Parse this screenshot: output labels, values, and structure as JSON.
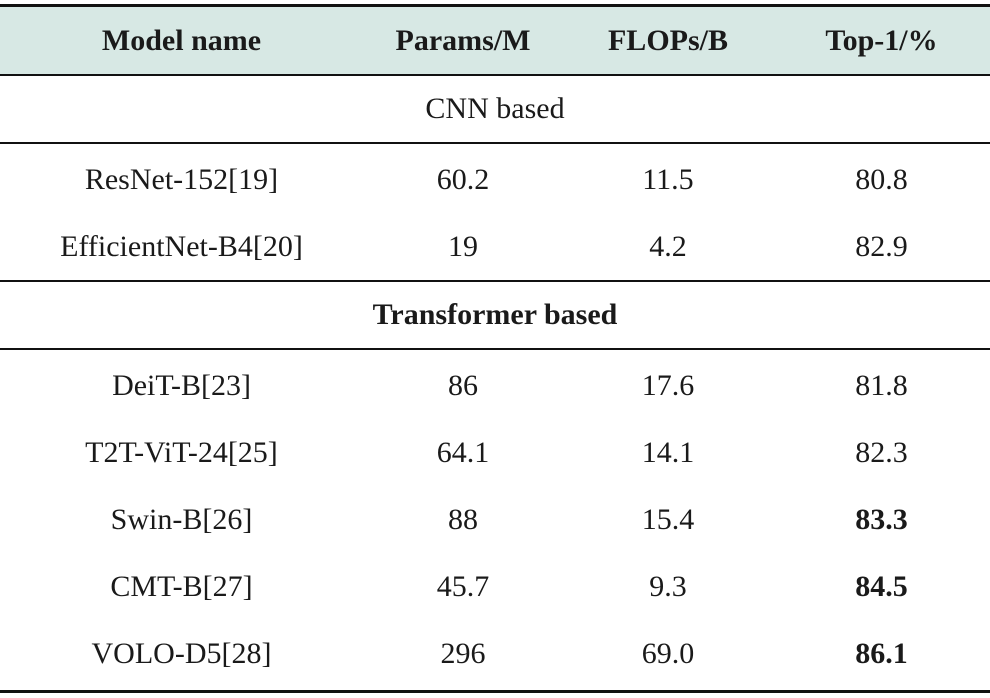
{
  "table": {
    "headers": [
      "Model name",
      "Params/M",
      "FLOPs/B",
      "Top-1/%"
    ],
    "sections": [
      {
        "title": "CNN based",
        "rows": [
          {
            "cells": [
              "ResNet-152[19]",
              "60.2",
              "11.5",
              "80.8"
            ]
          },
          {
            "cells": [
              "EfficientNet-B4[20]",
              "19",
              "4.2",
              "82.9"
            ]
          }
        ]
      },
      {
        "title": "Transformer based",
        "rows": [
          {
            "cells": [
              "DeiT-B[23]",
              "86",
              "17.6",
              "81.8"
            ]
          },
          {
            "cells": [
              "T2T-ViT-24[25]",
              "64.1",
              "14.1",
              "82.3"
            ]
          },
          {
            "cells": [
              "Swin-B[26]",
              "88",
              "15.4",
              "83.3"
            ]
          },
          {
            "cells": [
              "CMT-B[27]",
              "45.7",
              "9.3",
              "84.5"
            ]
          },
          {
            "cells": [
              "VOLO-D5[28]",
              "296",
              "69.0",
              "86.1"
            ]
          }
        ]
      }
    ]
  }
}
